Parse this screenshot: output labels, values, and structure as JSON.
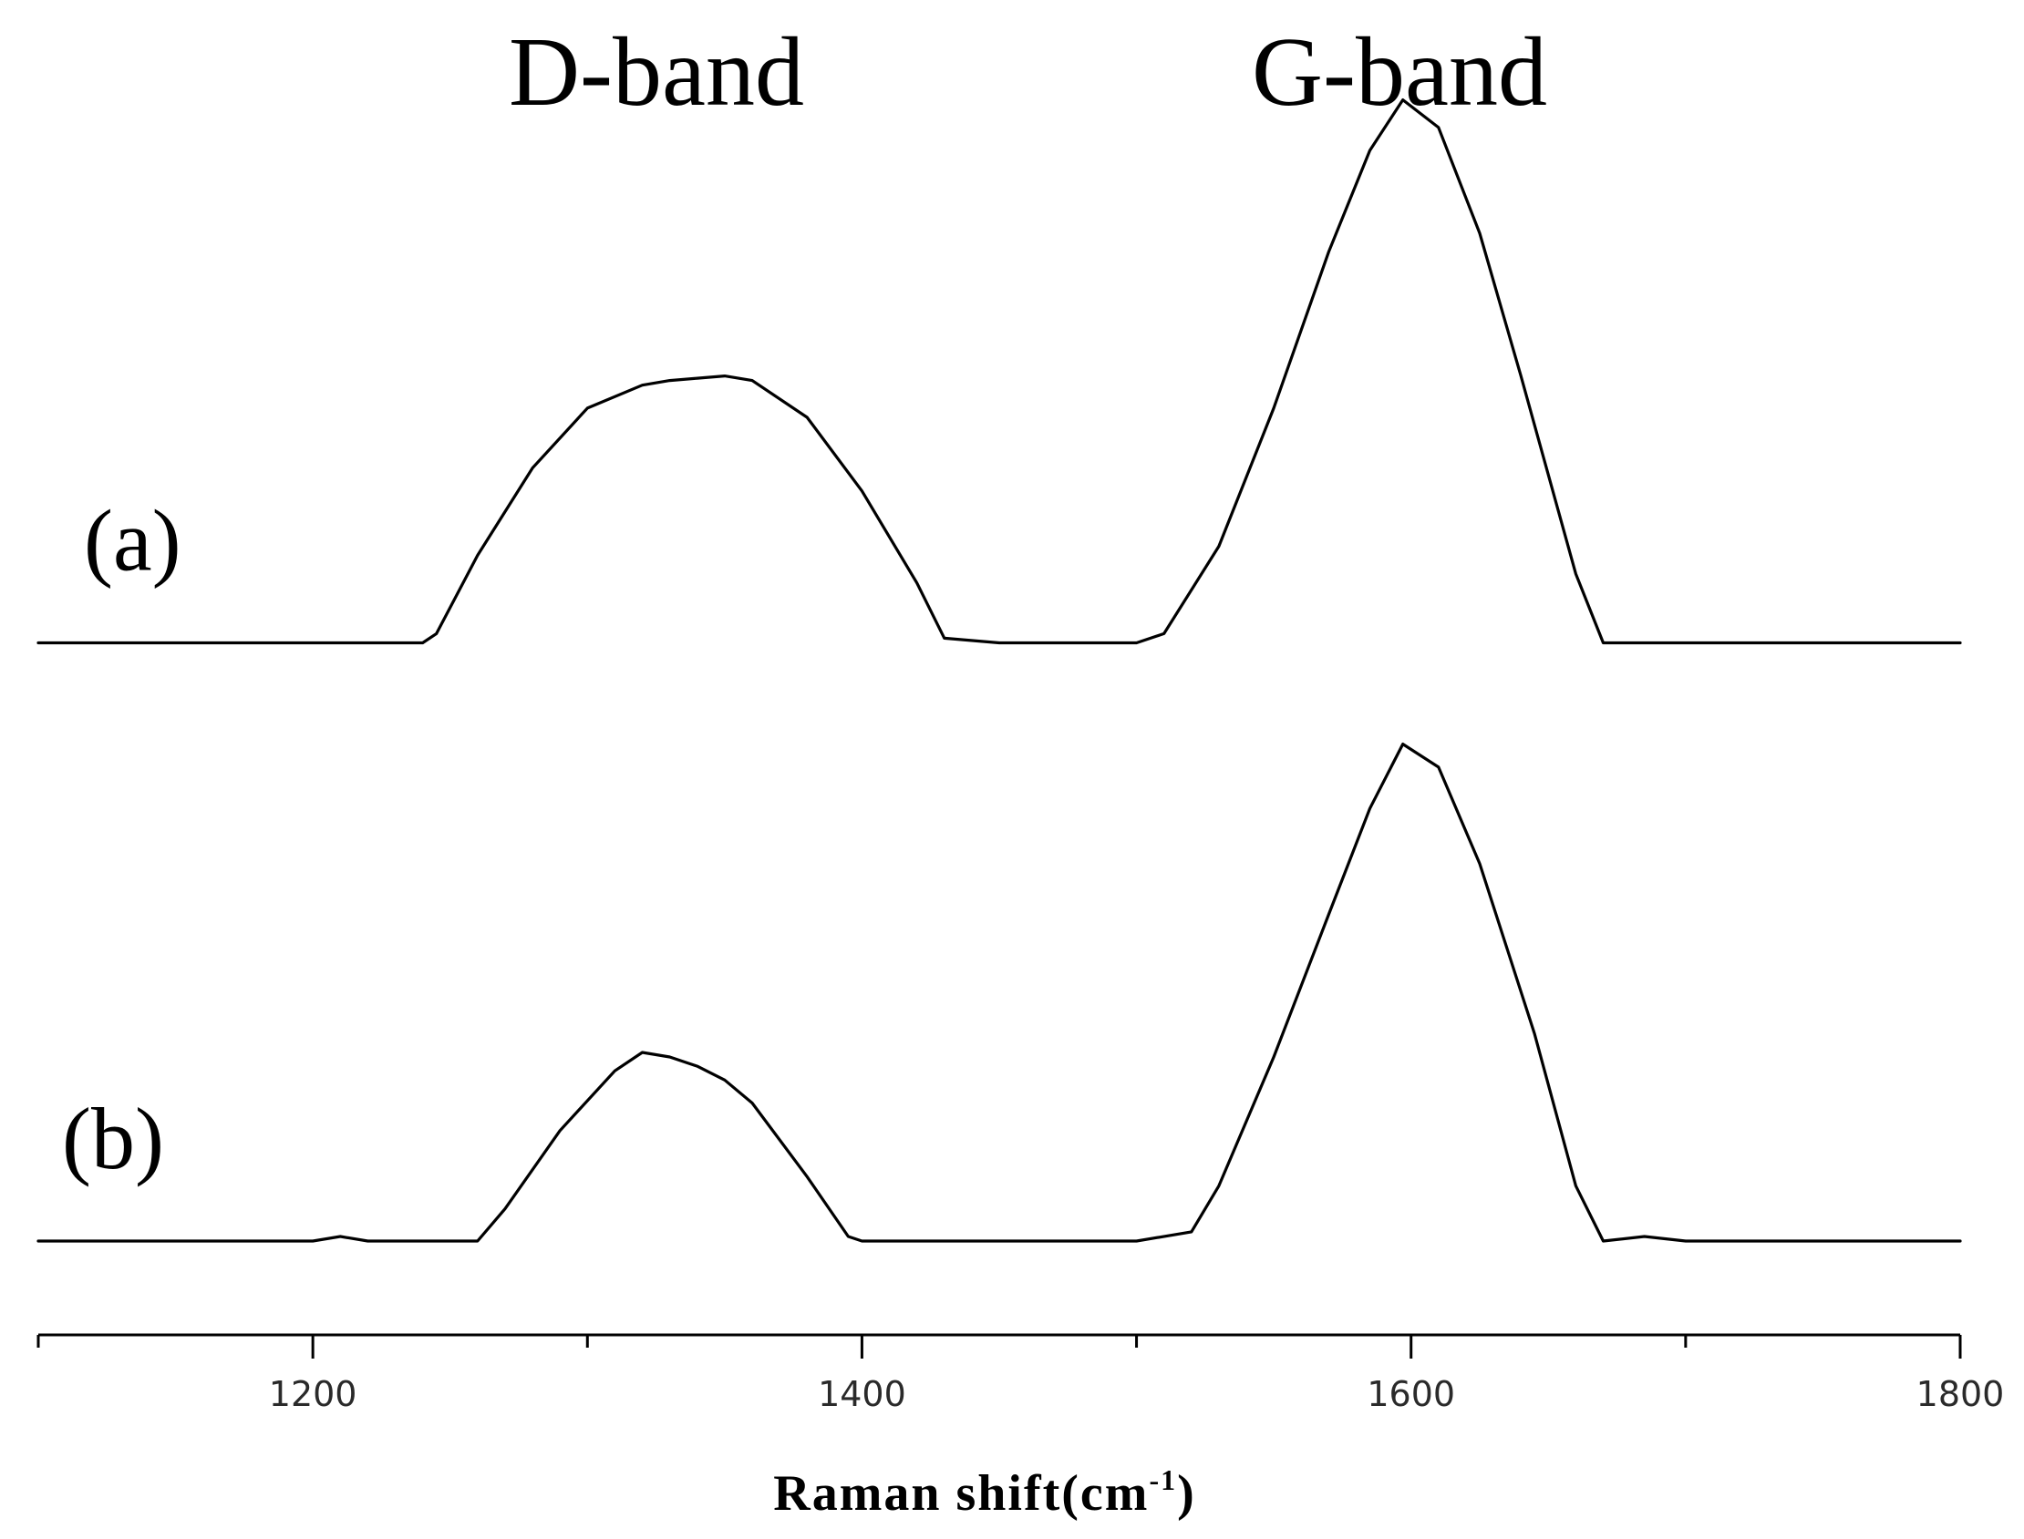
{
  "chart_data": {
    "type": "line",
    "title": "",
    "xlabel": "Raman shift(cm",
    "xlabel_sup": "-1",
    "xlabel_close": ")",
    "ylabel": "",
    "xlim": [
      1100,
      1800
    ],
    "xticks_major": [
      1200,
      1400,
      1600,
      1800
    ],
    "xticks_minor": [
      1100,
      1300,
      1500,
      1700
    ],
    "grid": false,
    "annotations": {
      "d_band": "D-band",
      "g_band": "G-band"
    },
    "series": [
      {
        "label": "(a)",
        "offset": 1.3,
        "x": [
          1100,
          1150,
          1200,
          1240,
          1245,
          1260,
          1280,
          1300,
          1320,
          1330,
          1340,
          1350,
          1360,
          1380,
          1400,
          1420,
          1430,
          1450,
          1500,
          1510,
          1530,
          1550,
          1570,
          1585,
          1597,
          1610,
          1625,
          1640,
          1660,
          1670,
          1680,
          1700,
          1750,
          1800
        ],
        "y": [
          0.0,
          0.0,
          0.0,
          0.0,
          0.02,
          0.19,
          0.38,
          0.51,
          0.56,
          0.57,
          0.575,
          0.58,
          0.57,
          0.49,
          0.33,
          0.13,
          0.01,
          0.0,
          0.0,
          0.02,
          0.21,
          0.51,
          0.85,
          1.07,
          1.18,
          1.12,
          0.89,
          0.58,
          0.15,
          0.0,
          0.0,
          0.0,
          0.0,
          0.0
        ]
      },
      {
        "label": "(b)",
        "offset": 0.0,
        "x": [
          1100,
          1150,
          1200,
          1210,
          1220,
          1260,
          1270,
          1290,
          1310,
          1320,
          1330,
          1340,
          1350,
          1360,
          1380,
          1395,
          1400,
          1450,
          1500,
          1520,
          1530,
          1550,
          1570,
          1585,
          1597,
          1610,
          1625,
          1645,
          1660,
          1670,
          1685,
          1700,
          1750,
          1800
        ],
        "y": [
          0.0,
          0.0,
          0.0,
          0.01,
          0.0,
          0.0,
          0.07,
          0.24,
          0.37,
          0.41,
          0.4,
          0.38,
          0.35,
          0.3,
          0.14,
          0.01,
          0.0,
          0.0,
          0.0,
          0.02,
          0.12,
          0.4,
          0.71,
          0.94,
          1.08,
          1.03,
          0.82,
          0.45,
          0.12,
          0.0,
          0.01,
          0.0,
          0.0,
          0.0
        ]
      }
    ]
  }
}
